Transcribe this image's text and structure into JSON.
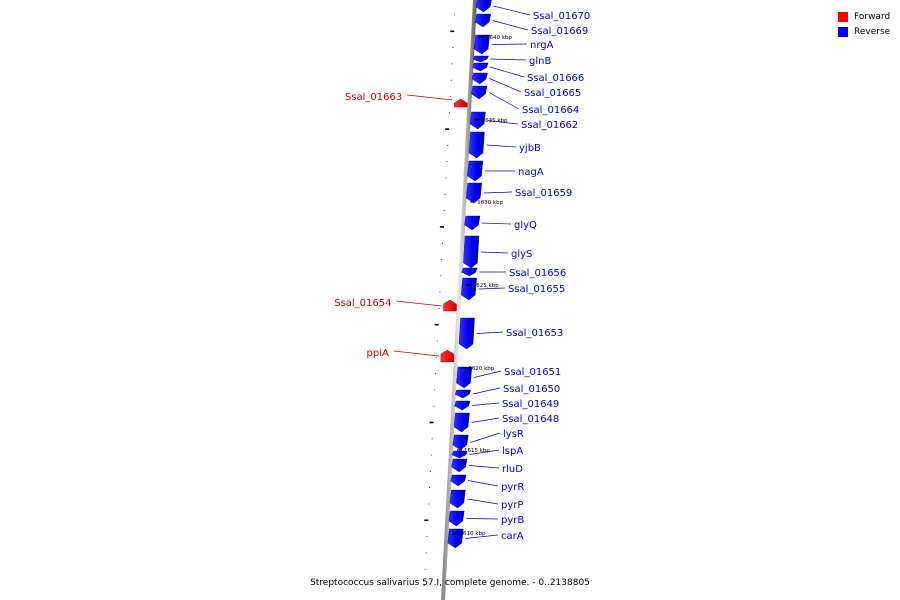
{
  "legend": {
    "forward_label": "Forward",
    "reverse_label": "Reverse",
    "forward_color": "#ff0000",
    "reverse_color": "#0000ff"
  },
  "caption": "Streptococcus salivarius 57.I, complete genome. - 0..2138805",
  "scale_labels": [
    "1640 kbp",
    "1635 kbp",
    "1630 kbp",
    "1625 kbp",
    "1620 kbp",
    "1615 kbp",
    "1610 kbp"
  ],
  "genes": [
    {
      "name": "Ssal_01670",
      "strand": "reverse"
    },
    {
      "name": "Ssal_01669",
      "strand": "reverse"
    },
    {
      "name": "nrgA",
      "strand": "reverse"
    },
    {
      "name": "glnB",
      "strand": "reverse"
    },
    {
      "name": "Ssal_01666",
      "strand": "reverse"
    },
    {
      "name": "Ssal_01665",
      "strand": "reverse"
    },
    {
      "name": "Ssal_01663",
      "strand": "forward"
    },
    {
      "name": "Ssal_01664",
      "strand": "reverse"
    },
    {
      "name": "Ssal_01662",
      "strand": "reverse"
    },
    {
      "name": "yjbB",
      "strand": "reverse"
    },
    {
      "name": "nagA",
      "strand": "reverse"
    },
    {
      "name": "Ssal_01659",
      "strand": "reverse"
    },
    {
      "name": "glyQ",
      "strand": "reverse"
    },
    {
      "name": "glyS",
      "strand": "reverse"
    },
    {
      "name": "Ssal_01656",
      "strand": "reverse"
    },
    {
      "name": "Ssal_01655",
      "strand": "reverse"
    },
    {
      "name": "Ssal_01654",
      "strand": "forward"
    },
    {
      "name": "Ssal_01653",
      "strand": "reverse"
    },
    {
      "name": "ppiA",
      "strand": "forward"
    },
    {
      "name": "Ssal_01651",
      "strand": "reverse"
    },
    {
      "name": "Ssal_01650",
      "strand": "reverse"
    },
    {
      "name": "Ssal_01649",
      "strand": "reverse"
    },
    {
      "name": "Ssal_01648",
      "strand": "reverse"
    },
    {
      "name": "lysR",
      "strand": "reverse"
    },
    {
      "name": "lspA",
      "strand": "reverse"
    },
    {
      "name": "rluD",
      "strand": "reverse"
    },
    {
      "name": "pyrR",
      "strand": "reverse"
    },
    {
      "name": "pyrP",
      "strand": "reverse"
    },
    {
      "name": "pyrB",
      "strand": "reverse"
    },
    {
      "name": "carA",
      "strand": "reverse"
    }
  ]
}
